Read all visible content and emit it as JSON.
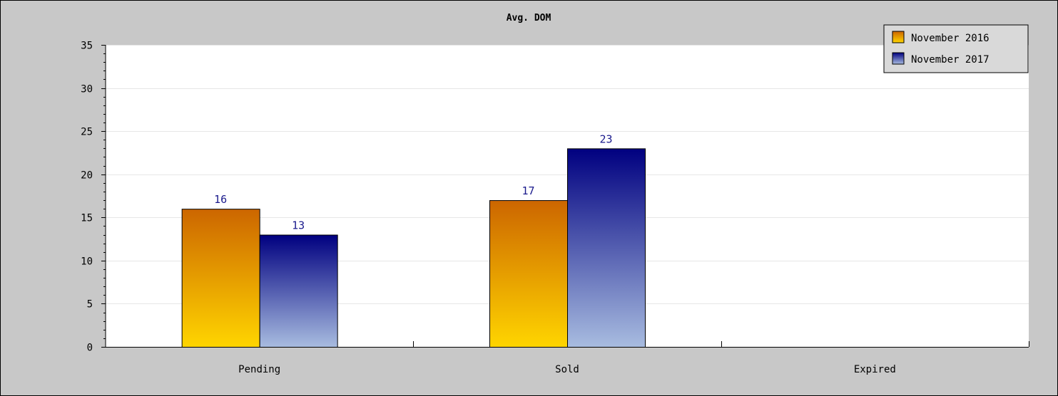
{
  "chart_data": {
    "type": "bar",
    "title": "Avg. DOM",
    "xlabel": "",
    "ylabel": "",
    "categories": [
      "Pending",
      "Sold",
      "Expired"
    ],
    "series": [
      {
        "name": "November 2016",
        "values": [
          16,
          17,
          null
        ]
      },
      {
        "name": "November 2017",
        "values": [
          13,
          23,
          null
        ]
      }
    ],
    "ylim": [
      0,
      35
    ],
    "yticks": [
      "0",
      "5",
      "10",
      "15",
      "20",
      "25",
      "30",
      "35"
    ],
    "grid": true,
    "legend_position": "top-right",
    "colors": {
      "series_1_top": "#cc6600",
      "series_1_bottom": "#ffd500",
      "series_2_top": "#000080",
      "series_2_bottom": "#a8bce0",
      "value_label": "#1a1a8c",
      "plot_background": "#ffffff",
      "frame_background": "#c8c8c8"
    }
  }
}
